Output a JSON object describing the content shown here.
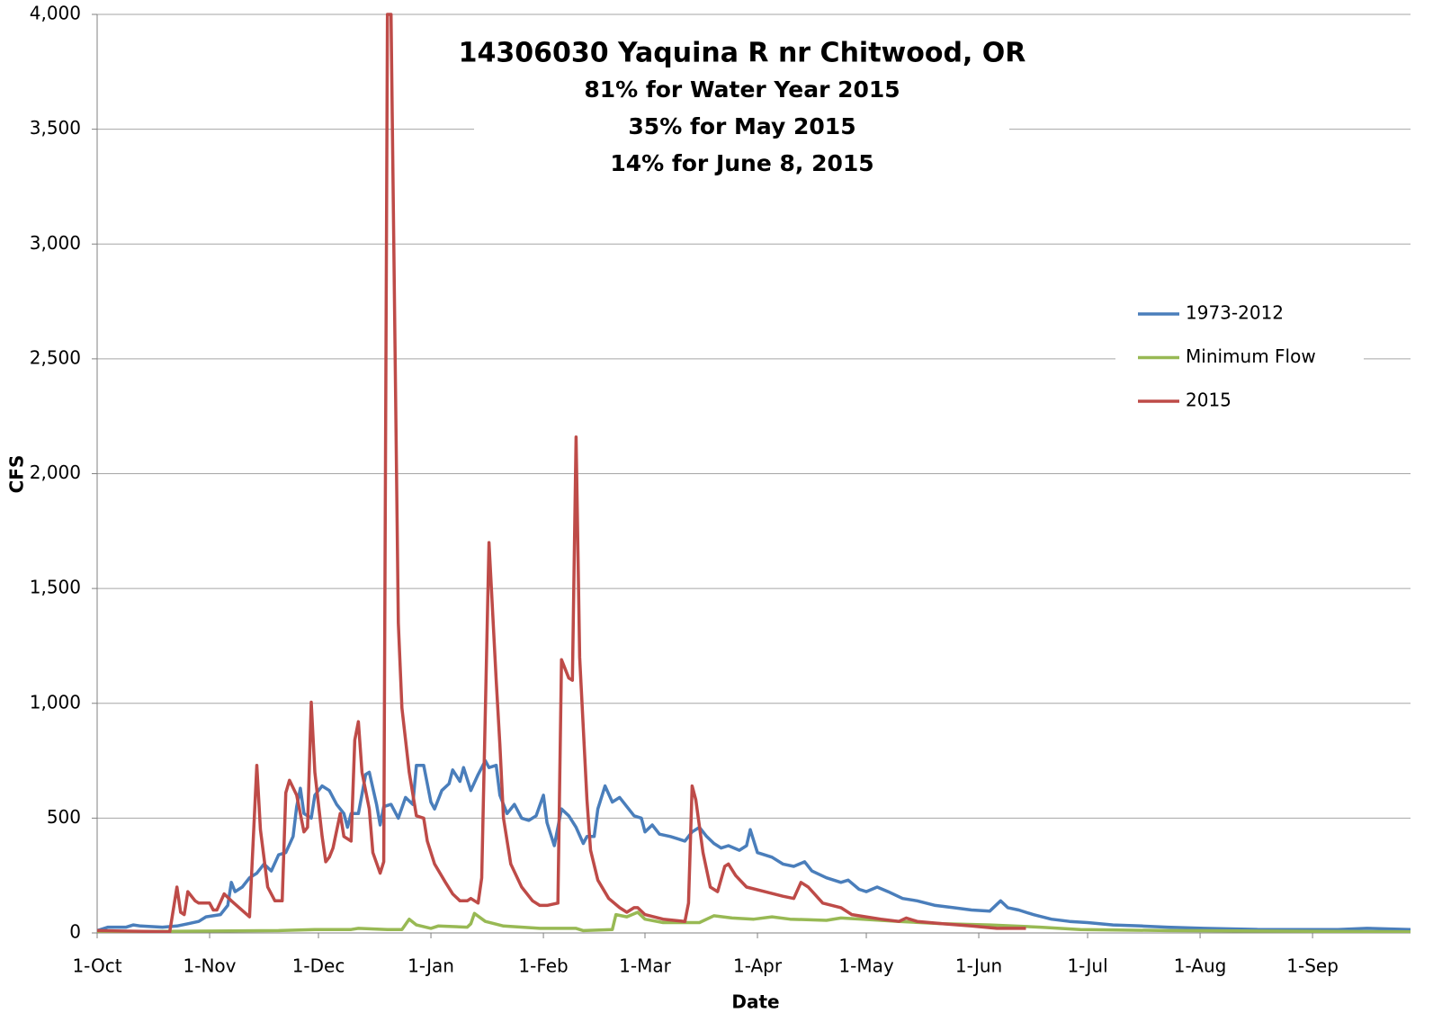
{
  "chart_data": {
    "type": "line",
    "title": "14306030 Yaquina R nr Chitwood, OR",
    "annotations": [
      "81% for Water Year 2015",
      "35% for May 2015",
      "14% for June 8, 2015"
    ],
    "xlabel": "Date",
    "ylabel": "CFS",
    "xlim": [
      0,
      362
    ],
    "xticks": [
      {
        "value": 0,
        "label": "1-Oct"
      },
      {
        "value": 31,
        "label": "1-Nov"
      },
      {
        "value": 61,
        "label": "1-Dec"
      },
      {
        "value": 92,
        "label": "1-Jan"
      },
      {
        "value": 123,
        "label": "1-Feb"
      },
      {
        "value": 151,
        "label": "1-Mar"
      },
      {
        "value": 182,
        "label": "1-Apr"
      },
      {
        "value": 212,
        "label": "1-May"
      },
      {
        "value": 243,
        "label": "1-Jun"
      },
      {
        "value": 273,
        "label": "1-Jul"
      },
      {
        "value": 304,
        "label": "1-Aug"
      },
      {
        "value": 335,
        "label": "1-Sep"
      }
    ],
    "ylim": [
      0,
      4000
    ],
    "yticks": [
      0,
      500,
      {
        "value": 1000,
        "label": "1,000"
      },
      {
        "value": 1500,
        "label": "1,500"
      },
      {
        "value": 2000,
        "label": "2,000"
      },
      {
        "value": 2500,
        "label": "2,500"
      },
      {
        "value": 3000,
        "label": "3,000"
      },
      {
        "value": 3500,
        "label": "3,500"
      },
      {
        "value": 4000,
        "label": "4,000"
      }
    ],
    "grid": true,
    "legend": "right",
    "series": [
      {
        "name": "1973-2012",
        "color": "#4a7ebb",
        "x": [
          0,
          3,
          8,
          10,
          12,
          18,
          22,
          25,
          28,
          30,
          34,
          36,
          37,
          38,
          40,
          42,
          44,
          46,
          48,
          50,
          52,
          54,
          55,
          56,
          57,
          59,
          60,
          62,
          64,
          66,
          68,
          69,
          70,
          72,
          74,
          75,
          77,
          78,
          79,
          81,
          83,
          85,
          87,
          88,
          90,
          92,
          93,
          95,
          97,
          98,
          100,
          101,
          103,
          105,
          107,
          108,
          110,
          111,
          113,
          115,
          117,
          119,
          121,
          123,
          124,
          126,
          128,
          130,
          132,
          134,
          135,
          137,
          138,
          140,
          142,
          144,
          146,
          148,
          150,
          151,
          153,
          155,
          158,
          160,
          162,
          164,
          166,
          168,
          170,
          172,
          174,
          177,
          179,
          180,
          182,
          186,
          189,
          192,
          195,
          197,
          201,
          205,
          207,
          210,
          212,
          215,
          218,
          222,
          226,
          231,
          236,
          241,
          246,
          249,
          251,
          254,
          258,
          263,
          268,
          273,
          280,
          288,
          295,
          305,
          320,
          333,
          342,
          350,
          362
        ],
        "values": [
          10,
          25,
          25,
          35,
          30,
          25,
          30,
          40,
          50,
          70,
          80,
          120,
          220,
          180,
          200,
          240,
          260,
          300,
          270,
          340,
          350,
          420,
          550,
          630,
          520,
          500,
          600,
          640,
          620,
          560,
          520,
          460,
          520,
          520,
          690,
          700,
          560,
          470,
          550,
          560,
          500,
          590,
          560,
          730,
          730,
          570,
          540,
          620,
          650,
          710,
          660,
          720,
          620,
          690,
          750,
          720,
          730,
          600,
          520,
          560,
          500,
          490,
          510,
          600,
          480,
          380,
          540,
          510,
          460,
          390,
          420,
          420,
          540,
          640,
          570,
          590,
          550,
          510,
          500,
          440,
          470,
          430,
          420,
          410,
          400,
          440,
          460,
          420,
          390,
          370,
          380,
          360,
          380,
          450,
          350,
          330,
          300,
          290,
          310,
          270,
          240,
          220,
          230,
          190,
          180,
          200,
          180,
          150,
          140,
          120,
          110,
          100,
          95,
          140,
          110,
          100,
          80,
          60,
          50,
          45,
          35,
          30,
          25,
          20,
          15,
          15,
          15,
          20,
          15
        ]
      },
      {
        "name": "Minimum Flow",
        "color": "#98b954",
        "x": [
          0,
          50,
          60,
          70,
          72,
          80,
          84,
          86,
          88,
          92,
          94,
          102,
          103,
          104,
          107,
          112,
          122,
          132,
          134,
          142,
          143,
          146,
          149,
          151,
          156,
          166,
          170,
          175,
          181,
          186,
          191,
          201,
          205,
          211,
          221,
          233,
          246,
          260,
          271,
          295,
          362
        ],
        "values": [
          5,
          10,
          15,
          15,
          20,
          15,
          15,
          60,
          35,
          20,
          30,
          25,
          40,
          85,
          50,
          30,
          20,
          20,
          10,
          15,
          80,
          70,
          90,
          60,
          45,
          45,
          75,
          65,
          60,
          70,
          60,
          55,
          65,
          60,
          50,
          40,
          35,
          25,
          15,
          10,
          5
        ]
      },
      {
        "name": "2015",
        "color": "#be4b48",
        "x": [
          0,
          20,
          22,
          23,
          24,
          25,
          27,
          28,
          31,
          32,
          33,
          35,
          37,
          42,
          44,
          45,
          47,
          49,
          51,
          52,
          53,
          55,
          57,
          58,
          59,
          60,
          62,
          63,
          64,
          65,
          67,
          68,
          70,
          71,
          72,
          73,
          75,
          76,
          78,
          79,
          80,
          81,
          83,
          84,
          86,
          88,
          90,
          91,
          93,
          96,
          98,
          100,
          102,
          103,
          105,
          106,
          108,
          110,
          111,
          112,
          114,
          117,
          120,
          122,
          124,
          127,
          128,
          130,
          131,
          132,
          133,
          135,
          136,
          138,
          141,
          144,
          146,
          148,
          149,
          151,
          156,
          162,
          163,
          164,
          165,
          167,
          169,
          171,
          173,
          174,
          176,
          179,
          184,
          189,
          192,
          194,
          196,
          200,
          205,
          208,
          216,
          221,
          223,
          226,
          233,
          241,
          248,
          256
        ],
        "values": [
          10,
          5,
          200,
          90,
          80,
          180,
          140,
          130,
          130,
          100,
          100,
          170,
          140,
          70,
          730,
          450,
          200,
          140,
          140,
          610,
          665,
          600,
          440,
          460,
          1005,
          700,
          420,
          310,
          330,
          370,
          520,
          420,
          400,
          840,
          920,
          700,
          540,
          350,
          260,
          310,
          4000,
          4000,
          1350,
          980,
          700,
          510,
          500,
          400,
          300,
          220,
          170,
          140,
          140,
          150,
          130,
          240,
          1700,
          1100,
          820,
          500,
          300,
          200,
          140,
          120,
          120,
          130,
          1190,
          1110,
          1100,
          2160,
          1200,
          580,
          360,
          230,
          150,
          110,
          90,
          110,
          110,
          80,
          60,
          50,
          130,
          640,
          580,
          350,
          200,
          180,
          290,
          300,
          250,
          200,
          180,
          160,
          150,
          220,
          200,
          130,
          110,
          80,
          60,
          50,
          65,
          50,
          40,
          30,
          20,
          20
        ]
      }
    ]
  }
}
